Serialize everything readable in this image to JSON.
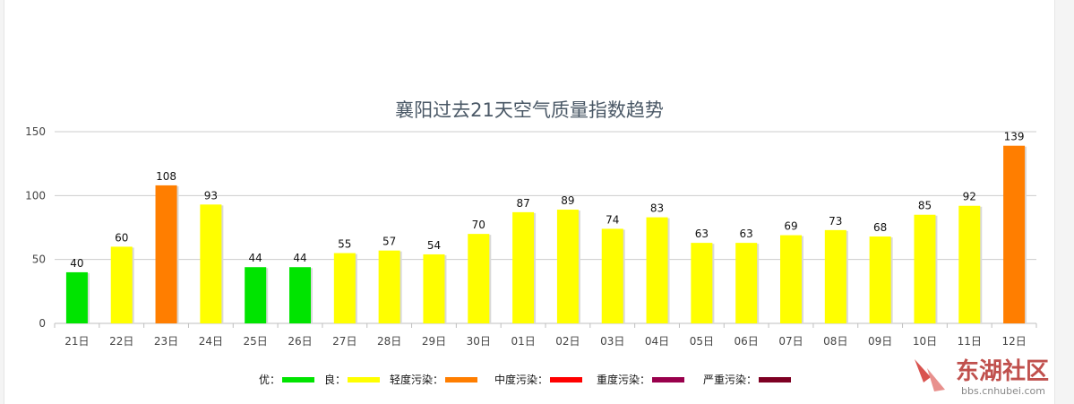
{
  "chart_data": {
    "type": "bar",
    "title": "襄阳过去21天空气质量指数趋势",
    "categories": [
      "21日",
      "22日",
      "23日",
      "24日",
      "25日",
      "26日",
      "27日",
      "28日",
      "29日",
      "30日",
      "01日",
      "02日",
      "03日",
      "04日",
      "05日",
      "06日",
      "07日",
      "08日",
      "09日",
      "10日",
      "11日",
      "12日"
    ],
    "values": [
      40,
      60,
      108,
      93,
      44,
      44,
      55,
      57,
      54,
      70,
      87,
      89,
      74,
      83,
      63,
      63,
      69,
      73,
      68,
      85,
      92,
      139
    ],
    "ylim": [
      0,
      150
    ],
    "yticks": [
      0,
      50,
      100,
      150
    ],
    "grid": true,
    "legend_position": "bottom",
    "legend": [
      {
        "label": "优：",
        "color": "#00e400"
      },
      {
        "label": "良：",
        "color": "#ffff00"
      },
      {
        "label": "轻度污染：",
        "color": "#ff7e00"
      },
      {
        "label": "中度污染：",
        "color": "#ff0000"
      },
      {
        "label": "重度污染：",
        "color": "#99004c"
      },
      {
        "label": "严重污染：",
        "color": "#7e0023"
      }
    ],
    "level_thresholds": [
      50,
      100,
      150,
      200,
      300
    ],
    "xlabel": "",
    "ylabel": ""
  },
  "watermark": {
    "name": "东湖社区",
    "url": "bbs.cnhubei.com"
  }
}
